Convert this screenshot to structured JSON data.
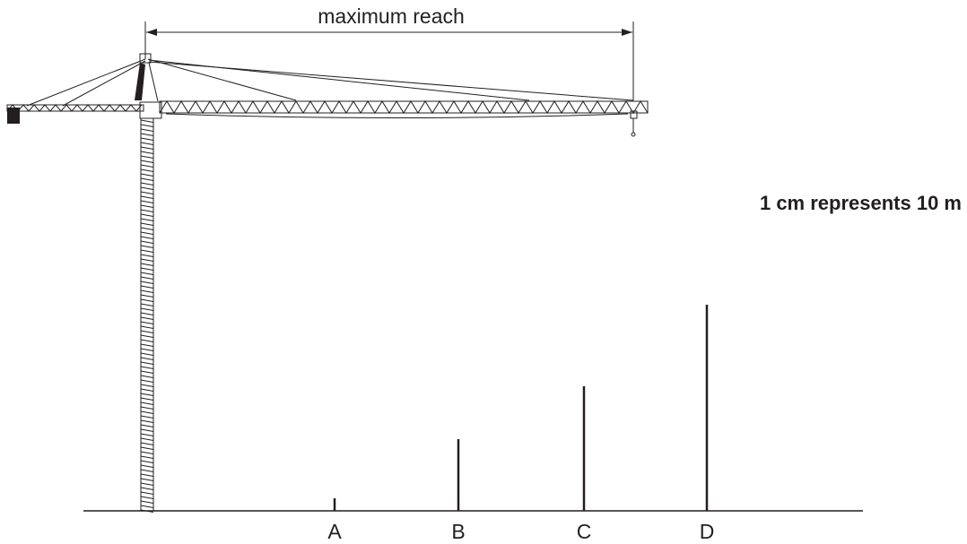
{
  "dimension": {
    "label": "maximum reach"
  },
  "scale_note": "1 cm represents 10 m",
  "markers": [
    {
      "label": "A"
    },
    {
      "label": "B"
    },
    {
      "label": "C"
    },
    {
      "label": "D"
    }
  ]
}
